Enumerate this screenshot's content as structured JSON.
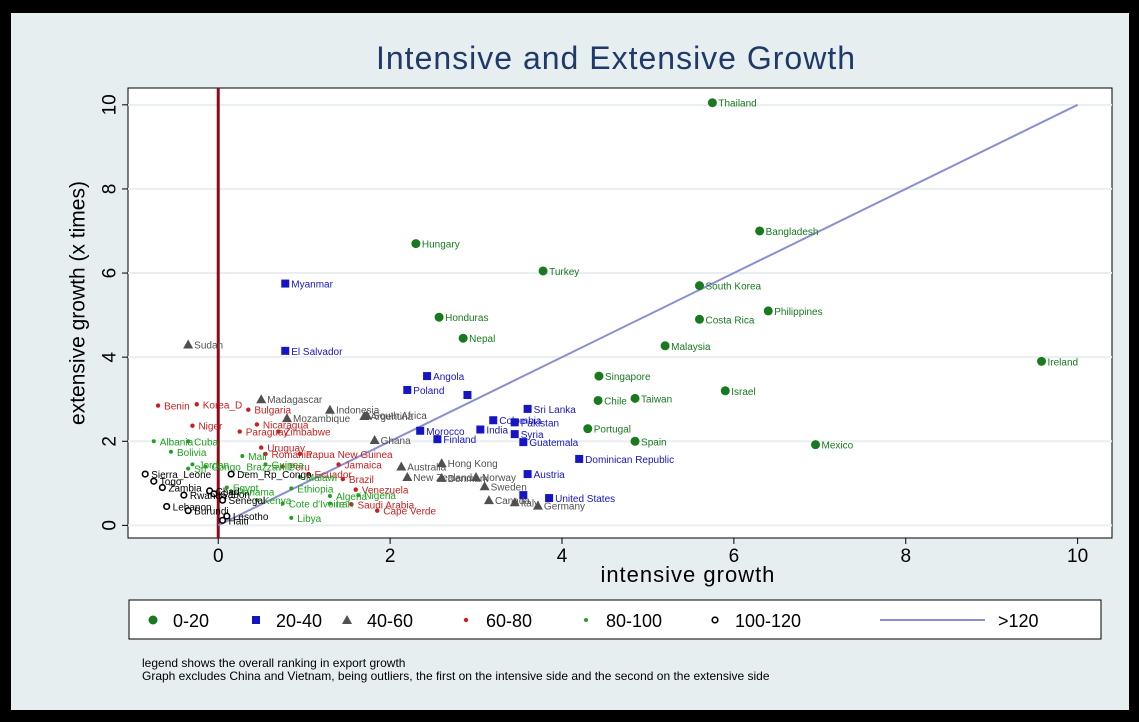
{
  "chart_data": {
    "type": "scatter",
    "title": "Intensive and Extensive Growth",
    "xlabel": "intensive growth",
    "ylabel": "extensive growth (x times)",
    "xlim": [
      -1.05,
      10.4
    ],
    "ylim": [
      -0.3,
      10.4
    ],
    "xticks": [
      0,
      2,
      4,
      6,
      8,
      10
    ],
    "yticks": [
      0,
      2,
      4,
      6,
      8,
      10
    ],
    "grid": "horizontal",
    "vertical_reference_line": {
      "x": 0,
      "color": "#8b0b1d"
    },
    "diagonal_line": {
      "name": ">120",
      "from": [
        0,
        0
      ],
      "to": [
        10,
        10
      ],
      "color": "#8a8fcf"
    },
    "legend_position": "bottom",
    "series": [
      {
        "name": "0-20",
        "marker": "circle",
        "color": "#18791f",
        "points": [
          {
            "label": "Thailand",
            "x": 5.75,
            "y": 10.05
          },
          {
            "label": "Bangladesh",
            "x": 6.3,
            "y": 7.0
          },
          {
            "label": "Hungary",
            "x": 2.3,
            "y": 6.7
          },
          {
            "label": "Turkey",
            "x": 3.78,
            "y": 6.05
          },
          {
            "label": "South Korea",
            "x": 5.6,
            "y": 5.7
          },
          {
            "label": "Philippines",
            "x": 6.4,
            "y": 5.1
          },
          {
            "label": "Honduras",
            "x": 2.57,
            "y": 4.95
          },
          {
            "label": "Costa Rica",
            "x": 5.6,
            "y": 4.9
          },
          {
            "label": "Nepal",
            "x": 2.85,
            "y": 4.45
          },
          {
            "label": "Malaysia",
            "x": 5.2,
            "y": 4.27
          },
          {
            "label": "Ireland",
            "x": 9.58,
            "y": 3.9
          },
          {
            "label": "Singapore",
            "x": 4.43,
            "y": 3.55
          },
          {
            "label": "Israel",
            "x": 5.9,
            "y": 3.2
          },
          {
            "label": "Chile",
            "x": 4.42,
            "y": 2.97
          },
          {
            "label": "Taiwan",
            "x": 4.85,
            "y": 3.02
          },
          {
            "label": "Portugal",
            "x": 4.3,
            "y": 2.3
          },
          {
            "label": "Spain",
            "x": 4.85,
            "y": 2.0
          },
          {
            "label": "Mexico",
            "x": 6.95,
            "y": 1.92
          }
        ]
      },
      {
        "name": "20-40",
        "marker": "square",
        "color": "#1515c5",
        "points": [
          {
            "label": "Myanmar",
            "x": 0.78,
            "y": 5.75
          },
          {
            "label": "El Salvador",
            "x": 0.78,
            "y": 4.15
          },
          {
            "label": "Angola",
            "x": 2.43,
            "y": 3.55
          },
          {
            "label": "Poland",
            "x": 2.2,
            "y": 3.22
          },
          {
            "label": "",
            "x": 2.9,
            "y": 3.1
          },
          {
            "label": "Sri Lanka",
            "x": 3.6,
            "y": 2.77
          },
          {
            "label": "Colombia",
            "x": 3.2,
            "y": 2.5
          },
          {
            "label": "Pakistan",
            "x": 3.45,
            "y": 2.45
          },
          {
            "label": "Morocco",
            "x": 2.35,
            "y": 2.25
          },
          {
            "label": "India",
            "x": 3.05,
            "y": 2.28
          },
          {
            "label": "Syria",
            "x": 3.45,
            "y": 2.17
          },
          {
            "label": "Finland",
            "x": 2.55,
            "y": 2.05
          },
          {
            "label": "Guatemala",
            "x": 3.55,
            "y": 1.98
          },
          {
            "label": "Dominican Republic",
            "x": 4.2,
            "y": 1.58
          },
          {
            "label": "Austria",
            "x": 3.6,
            "y": 1.22
          },
          {
            "label": "",
            "x": 3.55,
            "y": 0.72
          },
          {
            "label": "United States",
            "x": 3.85,
            "y": 0.65
          }
        ]
      },
      {
        "name": "40-60",
        "marker": "triangle",
        "color": "#505050",
        "points": [
          {
            "label": "Sudan",
            "x": -0.35,
            "y": 4.3
          },
          {
            "label": "Madagascar",
            "x": 0.5,
            "y": 3.0
          },
          {
            "label": "Indonesia",
            "x": 1.3,
            "y": 2.75
          },
          {
            "label": "Argentina",
            "x": 1.7,
            "y": 2.6
          },
          {
            "label": "Mozambique",
            "x": 0.8,
            "y": 2.55
          },
          {
            "label": "South Africa",
            "x": 1.73,
            "y": 2.62
          },
          {
            "label": "Ghana",
            "x": 1.82,
            "y": 2.03
          },
          {
            "label": "Australia",
            "x": 2.13,
            "y": 1.4
          },
          {
            "label": "Hong Kong",
            "x": 2.6,
            "y": 1.48
          },
          {
            "label": "New Zealand",
            "x": 2.2,
            "y": 1.15
          },
          {
            "label": "Denmark",
            "x": 2.6,
            "y": 1.13
          },
          {
            "label": "Norway",
            "x": 3.0,
            "y": 1.15
          },
          {
            "label": "Sweden",
            "x": 3.1,
            "y": 0.93
          },
          {
            "label": "Canada",
            "x": 3.15,
            "y": 0.6
          },
          {
            "label": "Italy",
            "x": 3.45,
            "y": 0.55
          },
          {
            "label": "Germany",
            "x": 3.72,
            "y": 0.47
          }
        ]
      },
      {
        "name": "60-80",
        "marker": "dot",
        "color": "#c82020",
        "points": [
          {
            "label": "Benin",
            "x": -0.7,
            "y": 2.85
          },
          {
            "label": "Korea_D",
            "x": -0.25,
            "y": 2.88
          },
          {
            "label": "Bulgaria",
            "x": 0.35,
            "y": 2.75
          },
          {
            "label": "Niger",
            "x": -0.3,
            "y": 2.37
          },
          {
            "label": "Nicaragua",
            "x": 0.45,
            "y": 2.4
          },
          {
            "label": "Paraguay",
            "x": 0.25,
            "y": 2.23
          },
          {
            "label": "Zimbabwe",
            "x": 0.7,
            "y": 2.23
          },
          {
            "label": "Uruguay",
            "x": 0.5,
            "y": 1.85
          },
          {
            "label": "Romania",
            "x": 0.55,
            "y": 1.7
          },
          {
            "label": "Papua New Guinea",
            "x": 0.95,
            "y": 1.7
          },
          {
            "label": "Peru",
            "x": 0.75,
            "y": 1.4
          },
          {
            "label": "Jamaica",
            "x": 1.4,
            "y": 1.45
          },
          {
            "label": "Ecuador",
            "x": 1.05,
            "y": 1.22
          },
          {
            "label": "Brazil",
            "x": 1.45,
            "y": 1.1
          },
          {
            "label": "Venezuela",
            "x": 1.6,
            "y": 0.85
          },
          {
            "label": "Saudi Arabia",
            "x": 1.55,
            "y": 0.5
          },
          {
            "label": "Cape Verde",
            "x": 1.85,
            "y": 0.35
          }
        ]
      },
      {
        "name": "80-100",
        "marker": "small-dot",
        "color": "#20a020",
        "points": [
          {
            "label": "Albania",
            "x": -0.75,
            "y": 2.0
          },
          {
            "label": "Cuba",
            "x": -0.35,
            "y": 2.0
          },
          {
            "label": "Bolivia",
            "x": -0.55,
            "y": 1.75
          },
          {
            "label": "Mali",
            "x": 0.28,
            "y": 1.65
          },
          {
            "label": "Jordan",
            "x": -0.3,
            "y": 1.45
          },
          {
            "label": "Congo_Brazzaville",
            "x": -0.15,
            "y": 1.4
          },
          {
            "label": "Sri",
            "x": -0.35,
            "y": 1.35
          },
          {
            "label": "Guinea",
            "x": 0.55,
            "y": 1.45
          },
          {
            "label": "Egypt",
            "x": 0.1,
            "y": 0.9
          },
          {
            "label": "Panama",
            "x": 0.15,
            "y": 0.8
          },
          {
            "label": "Malawi",
            "x": 0.95,
            "y": 1.15
          },
          {
            "label": "Ethiopia",
            "x": 0.85,
            "y": 0.88
          },
          {
            "label": "Algeria",
            "x": 1.3,
            "y": 0.7
          },
          {
            "label": "Nigeria",
            "x": 1.63,
            "y": 0.72
          },
          {
            "label": "Kenya",
            "x": 0.45,
            "y": 0.6
          },
          {
            "label": "Cote d'Ivoire",
            "x": 0.75,
            "y": 0.52
          },
          {
            "label": "Iran",
            "x": 1.3,
            "y": 0.52
          },
          {
            "label": "Libya",
            "x": 0.85,
            "y": 0.18
          }
        ]
      },
      {
        "name": "100-120",
        "marker": "hollow-circle",
        "color": "#000000",
        "points": [
          {
            "label": "Sierra_Leone",
            "x": -0.85,
            "y": 1.22
          },
          {
            "label": "Dem_Rp_Congo",
            "x": 0.15,
            "y": 1.22
          },
          {
            "label": "Togo",
            "x": -0.75,
            "y": 1.05
          },
          {
            "label": "Zambia",
            "x": -0.65,
            "y": 0.9
          },
          {
            "label": "Chad",
            "x": -0.1,
            "y": 0.82
          },
          {
            "label": "Gabon",
            "x": -0.05,
            "y": 0.75
          },
          {
            "label": "Rwanda",
            "x": -0.4,
            "y": 0.72
          },
          {
            "label": "Senegal",
            "x": 0.05,
            "y": 0.6
          },
          {
            "label": "Lebanon",
            "x": -0.6,
            "y": 0.45
          },
          {
            "label": "Burundi",
            "x": -0.35,
            "y": 0.35
          },
          {
            "label": "Haiti",
            "x": 0.05,
            "y": 0.12
          },
          {
            "label": "Lesotho",
            "x": 0.1,
            "y": 0.22
          }
        ]
      }
    ]
  },
  "legend": {
    "items": [
      {
        "label": "0-20",
        "marker": "circle",
        "color": "#18791f"
      },
      {
        "label": "20-40",
        "marker": "square",
        "color": "#1515c5"
      },
      {
        "label": "40-60",
        "marker": "triangle",
        "color": "#505050"
      },
      {
        "label": "60-80",
        "marker": "dot",
        "color": "#c82020"
      },
      {
        "label": "80-100",
        "marker": "small-dot",
        "color": "#20a020"
      },
      {
        "label": "100-120",
        "marker": "hollow-circle",
        "color": "#000000"
      },
      {
        "label": ">120",
        "marker": "line",
        "color": "#8a8fcf"
      }
    ]
  },
  "notes": {
    "line1": "legend shows the overall ranking in export growth",
    "line2": "Graph excludes China and Vietnam, being outliers, the first on the intensive side and the second on the extensive side"
  }
}
